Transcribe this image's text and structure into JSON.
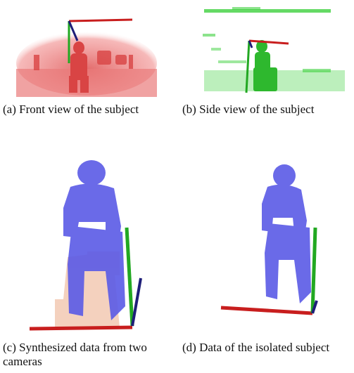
{
  "figure": {
    "panels": [
      {
        "id": "a",
        "caption": "(a) Front view of the subject",
        "point_color": "#e05a5a"
      },
      {
        "id": "b",
        "caption": "(b) Side view of the subject",
        "point_color": "#3fd13f"
      },
      {
        "id": "c",
        "caption": "(c) Synthesized data from two cameras",
        "point_color": "#5a5ae6"
      },
      {
        "id": "d",
        "caption": "(d) Data of the isolated subject",
        "point_color": "#5a5ae6"
      }
    ],
    "axis_colors": {
      "x": "#c81e1e",
      "y": "#22a822",
      "z": "#1e1e78"
    },
    "background_cloud_color": "#f3c9b3"
  }
}
